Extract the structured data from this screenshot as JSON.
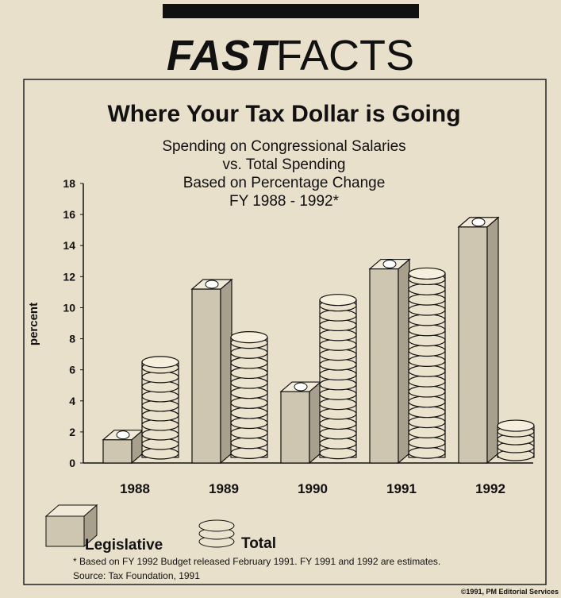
{
  "banner": {
    "bold": "FAST",
    "light": "FACTS"
  },
  "credit": "©1991, PM Editorial Services",
  "chart_data": {
    "type": "bar",
    "title": "Where Your Tax Dollar is Going",
    "subtitle": [
      "Spending on Congressional Salaries",
      "vs. Total Spending",
      "Based on Percentage Change",
      "FY 1988 - 1992*"
    ],
    "ylabel": "percent",
    "categories": [
      "1988",
      "1989",
      "1990",
      "1991",
      "1992"
    ],
    "series": [
      {
        "name": "Legislative",
        "color": "#cfc6b2",
        "values": [
          1.5,
          11.2,
          4.6,
          12.5,
          15.2
        ]
      },
      {
        "name": "Total",
        "color": "#ece3cf",
        "values": [
          6.5,
          8.1,
          10.5,
          12.2,
          2.4
        ]
      }
    ],
    "ylim": [
      0,
      18
    ],
    "yticks": [
      0,
      2,
      4,
      6,
      8,
      10,
      12,
      14,
      16,
      18
    ],
    "footnote": "* Based on FY 1992 Budget released February 1991.  FY 1991 and 1992 are estimates.",
    "source": "Source:  Tax Foundation, 1991"
  }
}
